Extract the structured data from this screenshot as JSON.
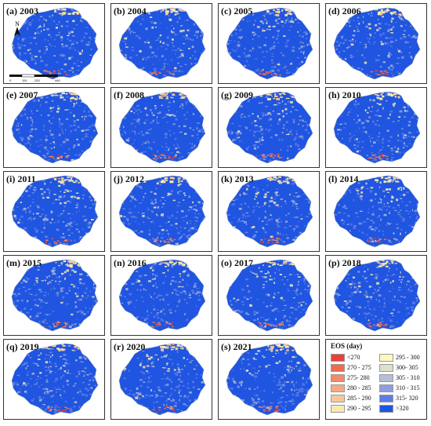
{
  "figure": {
    "panels": [
      {
        "label": "(a) 2003",
        "year": 2003
      },
      {
        "label": "(b) 2004",
        "year": 2004
      },
      {
        "label": "(c) 2005",
        "year": 2005
      },
      {
        "label": "(d) 2006",
        "year": 2006
      },
      {
        "label": "(e) 2007",
        "year": 2007
      },
      {
        "label": "(f) 2008",
        "year": 2008
      },
      {
        "label": "(g) 2009",
        "year": 2009
      },
      {
        "label": "(h) 2010",
        "year": 2010
      },
      {
        "label": "(i) 2011",
        "year": 2011
      },
      {
        "label": "(j) 2012",
        "year": 2012
      },
      {
        "label": "(k) 2013",
        "year": 2013
      },
      {
        "label": "(l) 2014",
        "year": 2014
      },
      {
        "label": "(m) 2015",
        "year": 2015
      },
      {
        "label": "(n) 2016",
        "year": 2016
      },
      {
        "label": "(o) 2017",
        "year": 2017
      },
      {
        "label": "(p) 2018",
        "year": 2018
      },
      {
        "label": "(q) 2019",
        "year": 2019
      },
      {
        "label": "(r) 2020",
        "year": 2020
      },
      {
        "label": "(s) 2021",
        "year": 2021
      }
    ],
    "north_arrow": "N",
    "scale_bar": {
      "ticks": [
        "0",
        "110",
        "220",
        "440"
      ],
      "unit": "km"
    },
    "legend": {
      "title": "EOS (day)",
      "items": [
        {
          "label": "<270",
          "color": "#e8413a"
        },
        {
          "label": "270 - 275",
          "color": "#ee6b4d"
        },
        {
          "label": "275- 280",
          "color": "#f28c68"
        },
        {
          "label": "280 - 285",
          "color": "#f5aa80"
        },
        {
          "label": "285 - 290",
          "color": "#f7c79a"
        },
        {
          "label": "290 - 295",
          "color": "#fbe9b0"
        },
        {
          "label": "295 - 300",
          "color": "#fdf8c0"
        },
        {
          "label": "300- 305",
          "color": "#dcdfcc"
        },
        {
          "label": "305 - 310",
          "color": "#b6bfd9"
        },
        {
          "label": "310 - 315",
          "color": "#8e9ee0"
        },
        {
          "label": "315- 320",
          "color": "#5d7ce4"
        },
        {
          "label": ">320",
          "color": "#1f55e0"
        }
      ]
    }
  }
}
